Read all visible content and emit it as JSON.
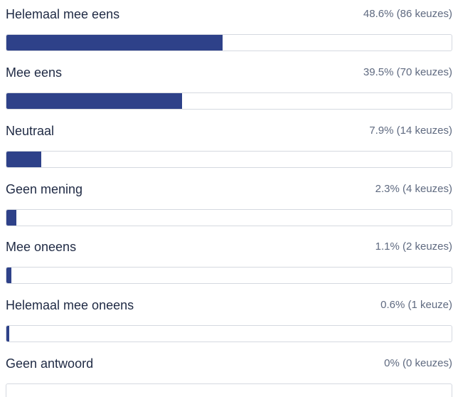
{
  "poll": {
    "accent_color": "#2e4189",
    "options": [
      {
        "label": "Helemaal mee eens",
        "stat": "48.6% (86 keuzes)",
        "fraction": 0.486
      },
      {
        "label": "Mee eens",
        "stat": "39.5% (70 keuzes)",
        "fraction": 0.395
      },
      {
        "label": "Neutraal",
        "stat": "7.9% (14 keuzes)",
        "fraction": 0.079
      },
      {
        "label": "Geen mening",
        "stat": "2.3% (4 keuzes)",
        "fraction": 0.023
      },
      {
        "label": "Mee oneens",
        "stat": "1.1% (2 keuzes)",
        "fraction": 0.011
      },
      {
        "label": "Helemaal mee oneens",
        "stat": "0.6% (1 keuze)",
        "fraction": 0.006
      },
      {
        "label": "Geen antwoord",
        "stat": "0% (0 keuzes)",
        "fraction": 0.0
      }
    ]
  }
}
